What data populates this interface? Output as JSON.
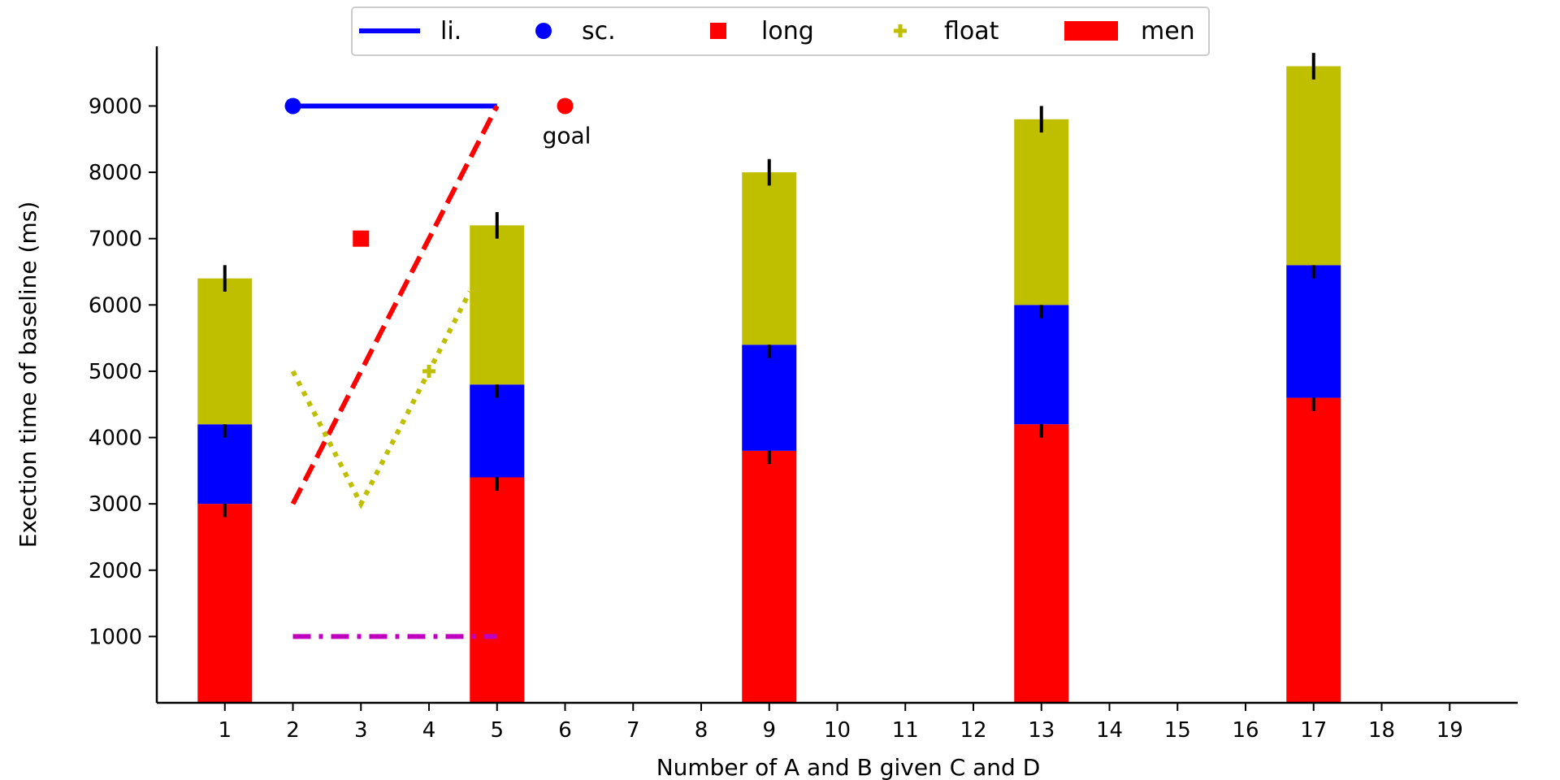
{
  "chart_data": {
    "type": "bar",
    "title": "",
    "xlabel": "Number of A and B given C and D",
    "ylabel": "Exection time of baseline (ms)",
    "xlim": [
      0,
      20
    ],
    "ylim": [
      0,
      9900
    ],
    "x_ticks": [
      1,
      2,
      3,
      4,
      5,
      6,
      7,
      8,
      9,
      10,
      11,
      12,
      13,
      14,
      15,
      16,
      17,
      18,
      19
    ],
    "y_ticks": [
      1000,
      2000,
      3000,
      4000,
      5000,
      6000,
      7000,
      8000,
      9000
    ],
    "grid": false,
    "legend_position": "top-center",
    "bar_width": 0.8,
    "stacked_bars": {
      "x": [
        1,
        5,
        9,
        13,
        17
      ],
      "series": [
        {
          "name": "men",
          "values": [
            3000,
            3400,
            3800,
            4200,
            4600
          ],
          "color": "#ff0000"
        },
        {
          "values": [
            1200,
            1400,
            1600,
            1800,
            2000
          ],
          "color": "#0000ff"
        },
        {
          "values": [
            2200,
            2400,
            2600,
            2800,
            3000
          ],
          "color": "#bfbf00"
        }
      ],
      "error": 200
    },
    "lines": [
      {
        "name": "li.",
        "style": "solid",
        "color": "#0000ff",
        "x": [
          2,
          5
        ],
        "y": [
          9000,
          9000
        ],
        "marker": "circle-start"
      },
      {
        "style": "dashed",
        "color": "#ff0000",
        "x": [
          2,
          5
        ],
        "y": [
          3000,
          9000
        ]
      },
      {
        "style": "dotted",
        "color": "#bfbf00",
        "x": [
          2,
          3,
          4,
          4.6
        ],
        "y": [
          5000,
          3000,
          5000,
          6200
        ]
      },
      {
        "style": "dashdot",
        "color": "#bf00bf",
        "x": [
          2,
          5
        ],
        "y": [
          1000,
          1000
        ]
      }
    ],
    "markers": [
      {
        "name": "sc.",
        "shape": "circle",
        "color": "#0000ff",
        "legend_only": true
      },
      {
        "name": "long",
        "shape": "square",
        "color": "#ff0000",
        "x": 3,
        "y": 7000
      },
      {
        "name": "float",
        "shape": "plus",
        "color": "#bfbf00",
        "x": 4,
        "y": 5000
      },
      {
        "shape": "circle",
        "color": "#ff0000",
        "x": 6,
        "y": 9000,
        "label": "goal"
      }
    ],
    "legend": [
      {
        "label": "li.",
        "kind": "line",
        "color": "#0000ff"
      },
      {
        "label": "sc.",
        "kind": "circle",
        "color": "#0000ff"
      },
      {
        "label": "long",
        "kind": "square",
        "color": "#ff0000"
      },
      {
        "label": "float",
        "kind": "plus",
        "color": "#bfbf00"
      },
      {
        "label": "men",
        "kind": "patch",
        "color": "#ff0000"
      }
    ]
  }
}
